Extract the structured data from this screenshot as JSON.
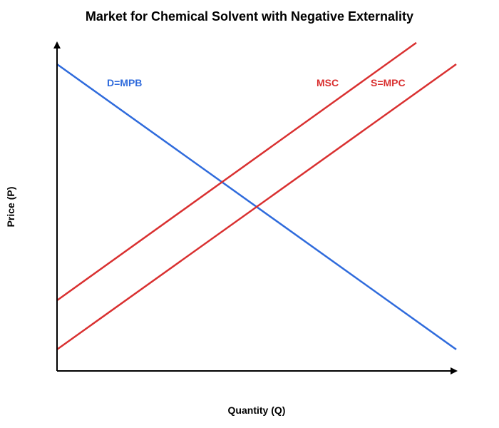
{
  "chart_data": {
    "type": "line",
    "title": "Market for Chemical Solvent with Negative Externality",
    "xlabel": "Quantity (Q)",
    "ylabel": "Price (P)",
    "xlim": [
      0,
      100
    ],
    "ylim": [
      0,
      100
    ],
    "grid": false,
    "legend": "none",
    "series": [
      {
        "name": "D=MPB",
        "color": "#2f6bdc",
        "points": [
          [
            0,
            100
          ],
          [
            100,
            7
          ]
        ]
      },
      {
        "name": "MSC",
        "color": "#d93030",
        "points": [
          [
            0,
            23
          ],
          [
            90,
            107
          ]
        ]
      },
      {
        "name": "S=MPC",
        "color": "#d93030",
        "points": [
          [
            0,
            7
          ],
          [
            100,
            100
          ]
        ]
      }
    ]
  }
}
